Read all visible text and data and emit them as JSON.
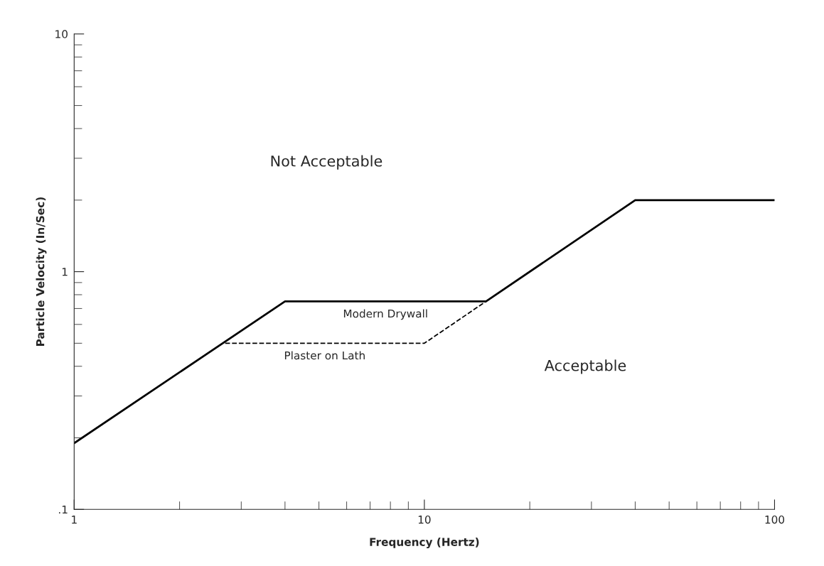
{
  "chart_data": {
    "type": "line",
    "xlabel": "Frequency (Hertz)",
    "ylabel": "Particle Velocity (In/Sec)",
    "x": [
      1,
      4,
      15,
      40,
      100
    ],
    "series": [
      {
        "name": "Modern Drywall",
        "color": "#000000",
        "line_style": "solid",
        "values": [
          0.19,
          0.75,
          0.75,
          2,
          2
        ]
      },
      {
        "name": "Plaster on Lath",
        "color": "#000000",
        "line_style": "dashed",
        "x": [
          2.7,
          10,
          15
        ],
        "values": [
          0.5,
          0.5,
          0.75
        ]
      }
    ],
    "log": "xy",
    "xlim": [
      1,
      100
    ],
    "ylim": [
      0.1,
      10
    ],
    "xticks": [
      1,
      10,
      100
    ],
    "yticks": [
      {
        "value": 0.1,
        "label": ".1"
      },
      1,
      10
    ],
    "annotations": [
      "Not Acceptable",
      "Acceptable"
    ],
    "grid": false,
    "legend": false,
    "marker": "none"
  }
}
